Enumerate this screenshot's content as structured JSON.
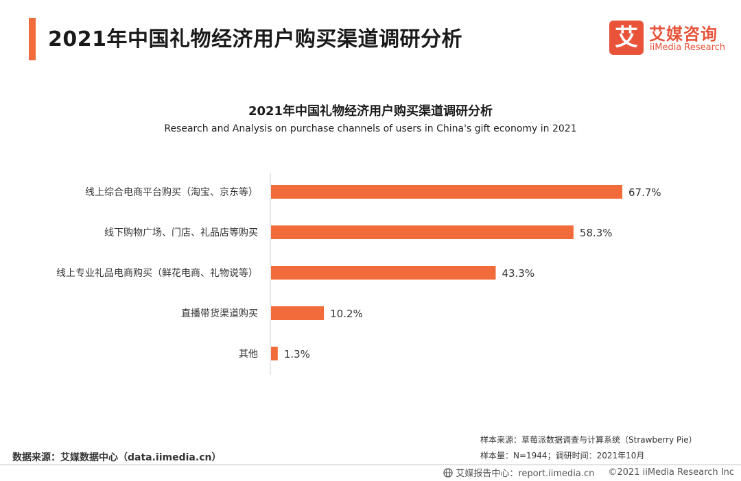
{
  "header": {
    "title": "2021年中国礼物经济用户购买渠道调研分析"
  },
  "logo": {
    "mark": "艾",
    "name_cn": "艾媒咨询",
    "name_en": "iiMedia Research"
  },
  "colors": {
    "accent": "#f26b3a",
    "bar": "#f26b3a",
    "logo": "#e8533a"
  },
  "chart_data": {
    "type": "bar",
    "orientation": "horizontal",
    "title": "2021年中国礼物经济用户购买渠道调研分析",
    "subtitle": "Research and Analysis on purchase channels of users in China's gift economy in 2021",
    "categories": [
      "线上综合电商平台购买（淘宝、京东等）",
      "线下购物广场、门店、礼品店等购买",
      "线上专业礼品电商购买（鲜花电商、礼物说等）",
      "直播带货渠道购买",
      "其他"
    ],
    "values": [
      67.7,
      58.3,
      43.3,
      10.2,
      1.3
    ],
    "value_labels": [
      "67.7%",
      "58.3%",
      "43.3%",
      "10.2%",
      "1.3%"
    ],
    "unit": "%",
    "xlim": [
      0,
      70
    ],
    "grid": false,
    "legend": "none"
  },
  "notes": {
    "sample_source": "样本来源：草莓派数据调查与计算系统（Strawberry Pie）",
    "sample_size": "样本量：N=1944；调研时间：2021年10月",
    "data_source": "数据来源：艾媒数据中心（data.iimedia.cn）"
  },
  "footer": {
    "report_center": "艾媒报告中心：report.iimedia.cn",
    "copyright": "©2021  iiMedia Research  Inc"
  }
}
